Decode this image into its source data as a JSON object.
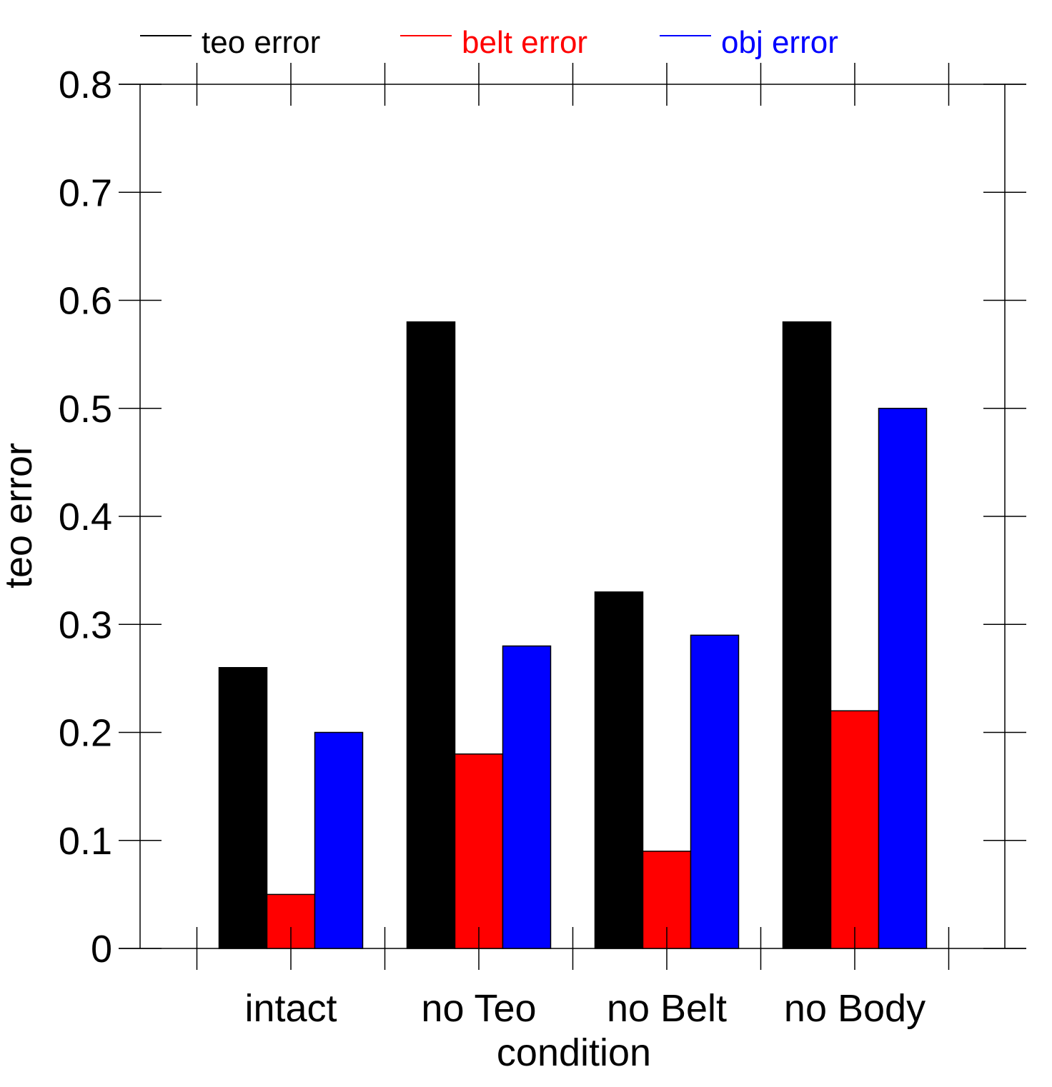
{
  "chart_data": {
    "type": "bar",
    "categories": [
      "intact",
      "no Teo",
      "no Belt",
      "no Body"
    ],
    "series": [
      {
        "name": "teo error",
        "color": "#000000",
        "values": [
          0.26,
          0.58,
          0.33,
          0.58
        ]
      },
      {
        "name": "belt error",
        "color": "#ff0000",
        "values": [
          0.05,
          0.18,
          0.09,
          0.22
        ]
      },
      {
        "name": "obj error",
        "color": "#0000ff",
        "values": [
          0.2,
          0.28,
          0.29,
          0.5
        ]
      }
    ],
    "xlabel": "condition",
    "ylabel": "teo error",
    "ylim": [
      0,
      0.8
    ],
    "yticks": [
      "0",
      "0.1",
      "0.2",
      "0.3",
      "0.4",
      "0.5",
      "0.6",
      "0.7",
      "0.8"
    ],
    "grid": false,
    "legend_placement": "top"
  }
}
